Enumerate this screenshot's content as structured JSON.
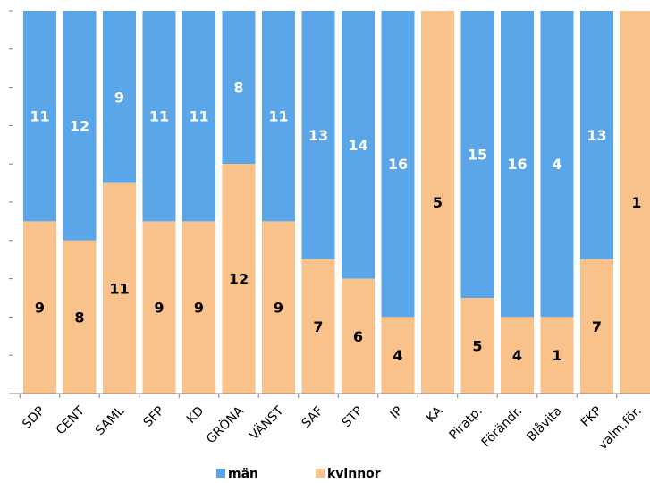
{
  "chart_data": {
    "type": "bar",
    "stacked": true,
    "normalized": true,
    "categories": [
      "SDP",
      "CENT",
      "SAML",
      "SFP",
      "KD",
      "GRÖNA",
      "VÄNST",
      "SAF",
      "STP",
      "IP",
      "KA",
      "Piratp.",
      "Förändr.",
      "Blåvita",
      "FKP",
      "valm.för."
    ],
    "series": [
      {
        "name": "män",
        "color": "#5aa6e8",
        "values": [
          11,
          12,
          9,
          11,
          11,
          8,
          11,
          13,
          14,
          16,
          0,
          15,
          16,
          4,
          13,
          0
        ]
      },
      {
        "name": "kvinnor",
        "color": "#f8c28a",
        "values": [
          9,
          8,
          11,
          9,
          9,
          12,
          9,
          7,
          6,
          4,
          5,
          5,
          4,
          1,
          7,
          1
        ]
      }
    ],
    "grid": false,
    "legend": "bottom"
  }
}
